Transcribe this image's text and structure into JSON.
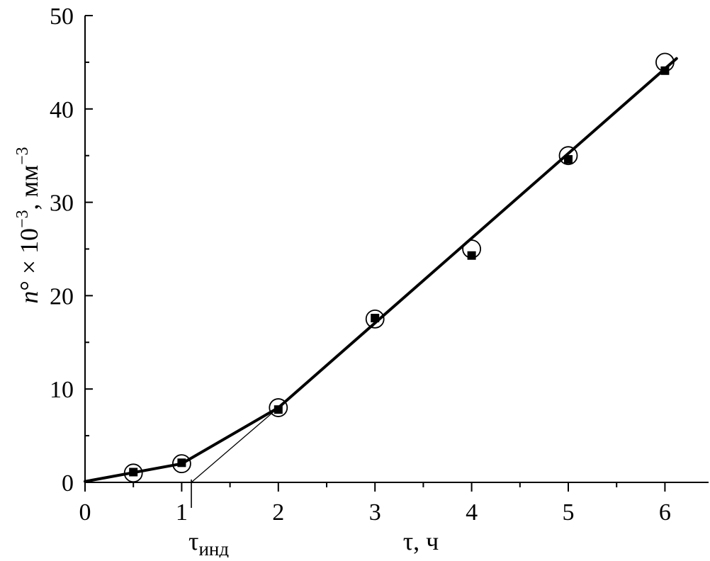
{
  "chart_data": {
    "type": "line",
    "xlabel": "τ, ч",
    "ylabel_main": "n° × 10",
    "ylabel_exp": "−3",
    "ylabel_unit": ", мм",
    "ylabel_unit_exp": "−3",
    "xlim": [
      0,
      6.45
    ],
    "ylim": [
      0,
      50
    ],
    "x_ticks": [
      0,
      1,
      2,
      3,
      4,
      5,
      6
    ],
    "y_ticks": [
      0,
      10,
      20,
      30,
      40,
      50
    ],
    "x_minor_step": 0.5,
    "y_minor_step": 5,
    "grid": false,
    "annotation": {
      "label": "τ",
      "subscript": "инд",
      "x": 1.1
    },
    "series": [
      {
        "marker": "filled-square",
        "points": [
          {
            "x": 0.5,
            "y": 1.1
          },
          {
            "x": 1.0,
            "y": 2.1
          },
          {
            "x": 2.0,
            "y": 7.8
          },
          {
            "x": 3.0,
            "y": 17.6
          },
          {
            "x": 4.0,
            "y": 24.3
          },
          {
            "x": 5.0,
            "y": 34.6
          },
          {
            "x": 6.0,
            "y": 44.1
          }
        ]
      },
      {
        "marker": "open-circle",
        "points": [
          {
            "x": 0.5,
            "y": 1.0
          },
          {
            "x": 1.0,
            "y": 2.0
          },
          {
            "x": 2.0,
            "y": 8.0
          },
          {
            "x": 3.0,
            "y": 17.5
          },
          {
            "x": 4.0,
            "y": 25.0
          },
          {
            "x": 5.0,
            "y": 35.0
          },
          {
            "x": 6.0,
            "y": 45.0
          }
        ]
      }
    ],
    "fit_line": [
      {
        "x": 0.0,
        "y": 0.1
      },
      {
        "x": 1.0,
        "y": 2.0
      },
      {
        "x": 2.0,
        "y": 8.0
      },
      {
        "x": 6.12,
        "y": 45.4
      }
    ],
    "tangent_line": [
      {
        "x": 1.1,
        "y": 0.0
      },
      {
        "x": 2.0,
        "y": 8.0
      }
    ]
  }
}
